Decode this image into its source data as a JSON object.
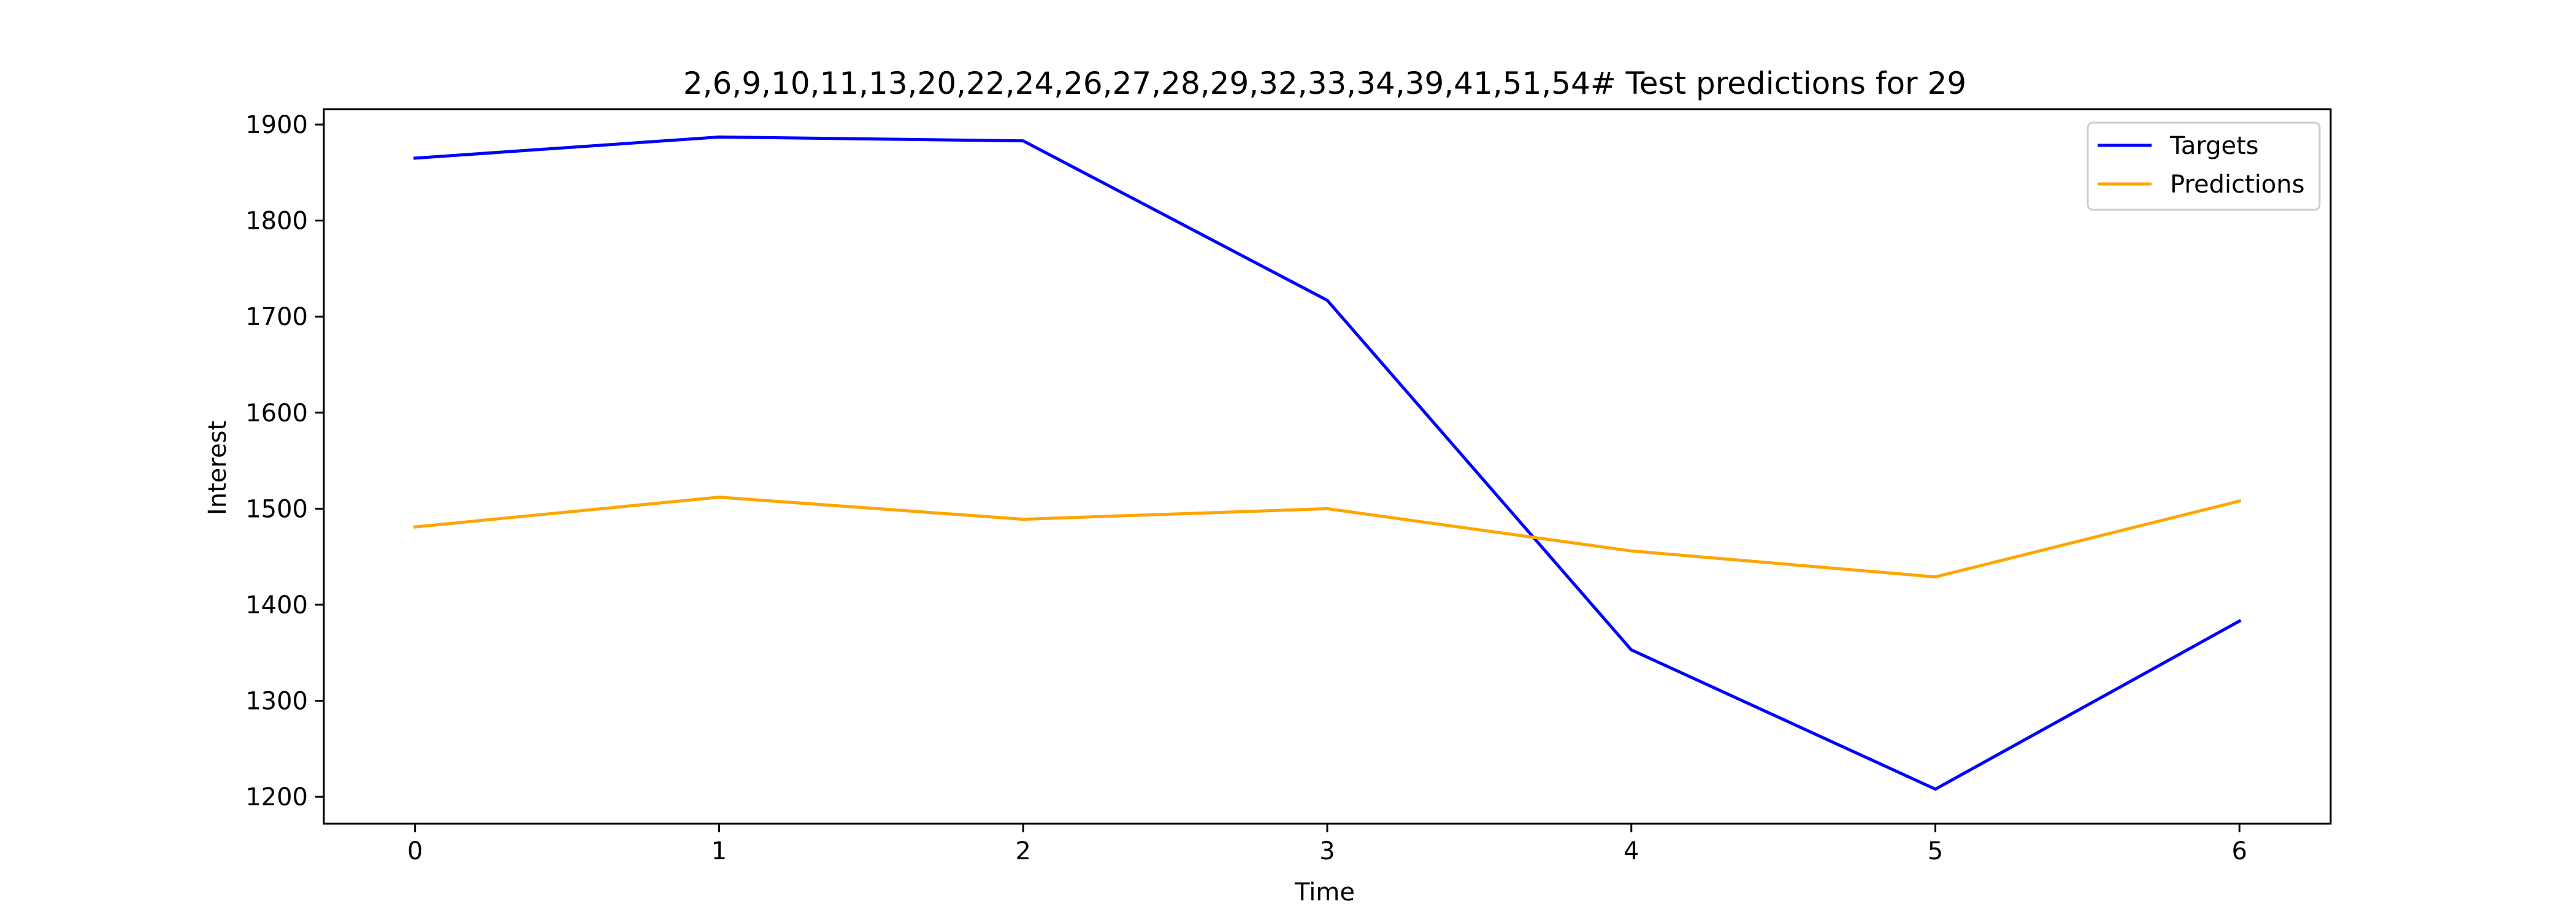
{
  "chart_data": {
    "type": "line",
    "title": "2,6,9,10,11,13,20,22,24,26,27,28,29,32,33,34,39,41,51,54# Test predictions for 29",
    "xlabel": "Time",
    "ylabel": "Interest",
    "x": [
      0,
      1,
      2,
      3,
      4,
      5,
      6
    ],
    "x_ticks": [
      "0",
      "1",
      "2",
      "3",
      "4",
      "5",
      "6"
    ],
    "y_ticks": [
      "1200",
      "1300",
      "1400",
      "1500",
      "1600",
      "1700",
      "1800",
      "1900"
    ],
    "xlim": [
      -0.3,
      6.3
    ],
    "ylim": [
      1172,
      1916
    ],
    "grid": false,
    "legend_position": "top-right",
    "series": [
      {
        "name": "Targets",
        "color": "#0000ff",
        "values": [
          1865,
          1887,
          1883,
          1717,
          1353,
          1208,
          1383
        ]
      },
      {
        "name": "Predictions",
        "color": "#ffa500",
        "values": [
          1481,
          1512,
          1489,
          1500,
          1456,
          1429,
          1508
        ]
      }
    ]
  }
}
